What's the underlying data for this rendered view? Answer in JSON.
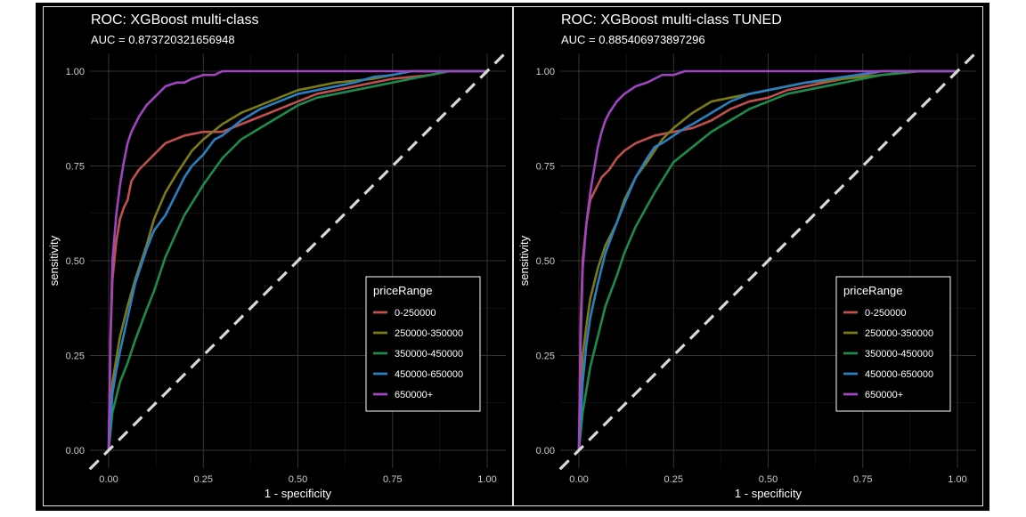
{
  "chart_data": [
    {
      "type": "line",
      "title": "ROC: XGBoost multi-class",
      "subtitle": "AUC =  0.873720321656948",
      "xlabel": "1 - specificity",
      "ylabel": "sensitivity",
      "xlim": [
        0,
        1
      ],
      "ylim": [
        0,
        1
      ],
      "x_ticks": [
        "0.00",
        "0.25",
        "0.50",
        "0.75",
        "1.00"
      ],
      "y_ticks": [
        "0.00",
        "0.25",
        "0.50",
        "0.75",
        "1.00"
      ],
      "grid": true,
      "legend_title": "priceRange",
      "legend_position": "bottom-right",
      "reference_line": {
        "x": [
          0,
          1
        ],
        "y": [
          0,
          1
        ],
        "style": "dashed"
      },
      "series": [
        {
          "name": "0-250000",
          "color": "#c0504d",
          "x": [
            0,
            0.005,
            0.01,
            0.02,
            0.03,
            0.04,
            0.05,
            0.06,
            0.08,
            0.1,
            0.12,
            0.15,
            0.2,
            0.25,
            0.3,
            0.35,
            0.4,
            0.45,
            0.5,
            0.55,
            0.6,
            0.65,
            0.7,
            0.75,
            0.8,
            0.85,
            0.9,
            1.0
          ],
          "y": [
            0,
            0.3,
            0.45,
            0.55,
            0.61,
            0.64,
            0.66,
            0.71,
            0.74,
            0.76,
            0.78,
            0.81,
            0.83,
            0.84,
            0.84,
            0.86,
            0.88,
            0.9,
            0.92,
            0.94,
            0.95,
            0.96,
            0.97,
            0.98,
            0.985,
            0.99,
            1.0,
            1.0
          ]
        },
        {
          "name": "250000-350000",
          "color": "#7a7a18",
          "x": [
            0,
            0.01,
            0.02,
            0.03,
            0.05,
            0.07,
            0.1,
            0.12,
            0.15,
            0.18,
            0.2,
            0.22,
            0.25,
            0.3,
            0.35,
            0.4,
            0.45,
            0.5,
            0.55,
            0.6,
            0.65,
            0.7,
            0.75,
            0.8,
            0.9,
            1.0
          ],
          "y": [
            0,
            0.18,
            0.24,
            0.3,
            0.38,
            0.45,
            0.54,
            0.61,
            0.68,
            0.73,
            0.76,
            0.79,
            0.82,
            0.86,
            0.89,
            0.91,
            0.93,
            0.95,
            0.96,
            0.97,
            0.975,
            0.98,
            0.99,
            1.0,
            1.0,
            1.0
          ]
        },
        {
          "name": "350000-450000",
          "color": "#1e8a4c",
          "x": [
            0,
            0.01,
            0.02,
            0.03,
            0.05,
            0.07,
            0.1,
            0.12,
            0.15,
            0.2,
            0.25,
            0.3,
            0.35,
            0.4,
            0.45,
            0.5,
            0.55,
            0.6,
            0.65,
            0.7,
            0.75,
            0.8,
            0.85,
            0.9,
            1.0
          ],
          "y": [
            0,
            0.1,
            0.14,
            0.18,
            0.23,
            0.29,
            0.37,
            0.42,
            0.51,
            0.62,
            0.7,
            0.77,
            0.82,
            0.85,
            0.88,
            0.91,
            0.93,
            0.94,
            0.95,
            0.96,
            0.97,
            0.98,
            0.99,
            1.0,
            1.0
          ]
        },
        {
          "name": "450000-650000",
          "color": "#2a7fc0",
          "x": [
            0,
            0.01,
            0.02,
            0.03,
            0.05,
            0.07,
            0.1,
            0.12,
            0.15,
            0.18,
            0.2,
            0.22,
            0.25,
            0.28,
            0.3,
            0.35,
            0.4,
            0.45,
            0.5,
            0.55,
            0.6,
            0.65,
            0.7,
            0.75,
            0.8,
            0.9,
            1.0
          ],
          "y": [
            0,
            0.15,
            0.21,
            0.26,
            0.35,
            0.44,
            0.53,
            0.58,
            0.62,
            0.68,
            0.72,
            0.75,
            0.78,
            0.82,
            0.83,
            0.87,
            0.9,
            0.92,
            0.94,
            0.95,
            0.96,
            0.97,
            0.985,
            0.99,
            1.0,
            1.0,
            1.0
          ]
        },
        {
          "name": "650000+",
          "color": "#a044c0",
          "x": [
            0,
            0.005,
            0.01,
            0.02,
            0.03,
            0.04,
            0.05,
            0.06,
            0.07,
            0.08,
            0.1,
            0.12,
            0.15,
            0.18,
            0.2,
            0.22,
            0.25,
            0.28,
            0.3,
            0.35,
            0.4,
            0.5,
            0.6,
            1.0
          ],
          "y": [
            0,
            0.3,
            0.5,
            0.62,
            0.7,
            0.76,
            0.81,
            0.84,
            0.86,
            0.88,
            0.91,
            0.93,
            0.96,
            0.97,
            0.97,
            0.98,
            0.99,
            0.99,
            1.0,
            1.0,
            1.0,
            1.0,
            1.0,
            1.0
          ]
        }
      ]
    },
    {
      "type": "line",
      "title": "ROC: XGBoost multi-class TUNED",
      "subtitle": "AUC = 0.885406973897296",
      "xlabel": "1 - specificity",
      "ylabel": "sensitivity",
      "xlim": [
        0,
        1
      ],
      "ylim": [
        0,
        1
      ],
      "x_ticks": [
        "0.00",
        "0.25",
        "0.50",
        "0.75",
        "1.00"
      ],
      "y_ticks": [
        "0.00",
        "0.25",
        "0.50",
        "0.75",
        "1.00"
      ],
      "grid": true,
      "legend_title": "priceRange",
      "legend_position": "bottom-right",
      "reference_line": {
        "x": [
          0,
          1
        ],
        "y": [
          0,
          1
        ],
        "style": "dashed"
      },
      "series": [
        {
          "name": "0-250000",
          "color": "#c0504d",
          "x": [
            0,
            0.005,
            0.01,
            0.02,
            0.03,
            0.04,
            0.05,
            0.06,
            0.08,
            0.1,
            0.12,
            0.15,
            0.2,
            0.25,
            0.3,
            0.35,
            0.4,
            0.45,
            0.5,
            0.55,
            0.6,
            0.65,
            0.7,
            0.75,
            0.8,
            0.9,
            1.0
          ],
          "y": [
            0,
            0.35,
            0.5,
            0.6,
            0.66,
            0.68,
            0.7,
            0.72,
            0.74,
            0.77,
            0.79,
            0.81,
            0.83,
            0.84,
            0.85,
            0.87,
            0.9,
            0.92,
            0.93,
            0.95,
            0.96,
            0.97,
            0.98,
            0.99,
            1.0,
            1.0,
            1.0
          ]
        },
        {
          "name": "250000-350000",
          "color": "#7a7a18",
          "x": [
            0,
            0.01,
            0.02,
            0.03,
            0.05,
            0.07,
            0.1,
            0.12,
            0.15,
            0.18,
            0.2,
            0.22,
            0.25,
            0.3,
            0.35,
            0.4,
            0.45,
            0.5,
            0.55,
            0.6,
            0.7,
            0.8,
            0.9,
            1.0
          ],
          "y": [
            0,
            0.25,
            0.33,
            0.4,
            0.48,
            0.54,
            0.6,
            0.66,
            0.72,
            0.76,
            0.79,
            0.82,
            0.85,
            0.89,
            0.92,
            0.93,
            0.94,
            0.95,
            0.96,
            0.97,
            0.98,
            0.99,
            1.0,
            1.0
          ]
        },
        {
          "name": "350000-450000",
          "color": "#1e8a4c",
          "x": [
            0,
            0.01,
            0.02,
            0.03,
            0.05,
            0.07,
            0.1,
            0.12,
            0.15,
            0.2,
            0.25,
            0.3,
            0.35,
            0.4,
            0.45,
            0.5,
            0.55,
            0.6,
            0.65,
            0.7,
            0.75,
            0.8,
            0.9,
            1.0
          ],
          "y": [
            0,
            0.1,
            0.16,
            0.22,
            0.3,
            0.38,
            0.46,
            0.52,
            0.59,
            0.68,
            0.76,
            0.8,
            0.84,
            0.87,
            0.9,
            0.92,
            0.94,
            0.95,
            0.96,
            0.97,
            0.98,
            0.99,
            1.0,
            1.0
          ]
        },
        {
          "name": "450000-650000",
          "color": "#2a7fc0",
          "x": [
            0,
            0.01,
            0.02,
            0.03,
            0.05,
            0.07,
            0.1,
            0.12,
            0.15,
            0.18,
            0.2,
            0.22,
            0.25,
            0.28,
            0.3,
            0.35,
            0.4,
            0.45,
            0.5,
            0.55,
            0.6,
            0.7,
            0.8,
            0.9,
            1.0
          ],
          "y": [
            0,
            0.18,
            0.28,
            0.35,
            0.44,
            0.52,
            0.6,
            0.65,
            0.72,
            0.77,
            0.8,
            0.81,
            0.83,
            0.85,
            0.86,
            0.89,
            0.92,
            0.94,
            0.95,
            0.96,
            0.97,
            0.985,
            1.0,
            1.0,
            1.0
          ]
        },
        {
          "name": "650000+",
          "color": "#a044c0",
          "x": [
            0,
            0.005,
            0.01,
            0.02,
            0.03,
            0.04,
            0.05,
            0.06,
            0.07,
            0.08,
            0.1,
            0.12,
            0.15,
            0.18,
            0.2,
            0.22,
            0.25,
            0.28,
            0.3,
            0.35,
            0.4,
            0.5,
            1.0
          ],
          "y": [
            0,
            0.3,
            0.48,
            0.6,
            0.68,
            0.74,
            0.8,
            0.84,
            0.87,
            0.89,
            0.92,
            0.94,
            0.96,
            0.97,
            0.98,
            0.99,
            0.99,
            1.0,
            1.0,
            1.0,
            1.0,
            1.0,
            1.0
          ]
        }
      ]
    }
  ],
  "colors": {
    "background": "#000000",
    "grid": "#333333",
    "reference_line": "#d8d8d8",
    "text": "#ffffff",
    "tick_text": "#cccccc"
  }
}
